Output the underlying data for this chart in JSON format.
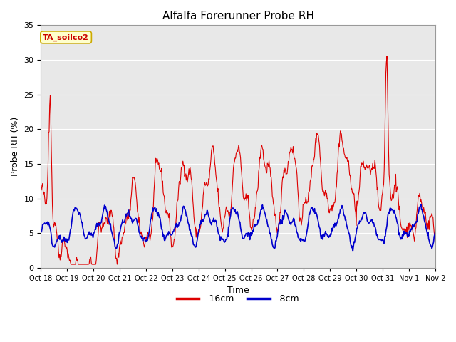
{
  "title": "Alfalfa Forerunner Probe RH",
  "ylabel": "Probe RH (%)",
  "xlabel": "Time",
  "ylim": [
    0,
    35
  ],
  "annotation_text": "TA_soilco2",
  "annotation_color": "#cc0000",
  "annotation_bg": "#ffffcc",
  "annotation_border": "#ccaa00",
  "line1_label": "-16cm",
  "line1_color": "#dd0000",
  "line2_label": "-8cm",
  "line2_color": "#0000cc",
  "bg_color": "#e8e8e8",
  "tick_labels": [
    "Oct 18",
    "Oct 19",
    "Oct 20",
    "Oct 21",
    "Oct 22",
    "Oct 23",
    "Oct 24",
    "Oct 25",
    "Oct 26",
    "Oct 27",
    "Oct 28",
    "Oct 29",
    "Oct 30",
    "Oct 31",
    "Nov 1",
    "Nov 2"
  ],
  "yticks": [
    0,
    5,
    10,
    15,
    20,
    25,
    30,
    35
  ],
  "num_days": 15,
  "seed": 42
}
